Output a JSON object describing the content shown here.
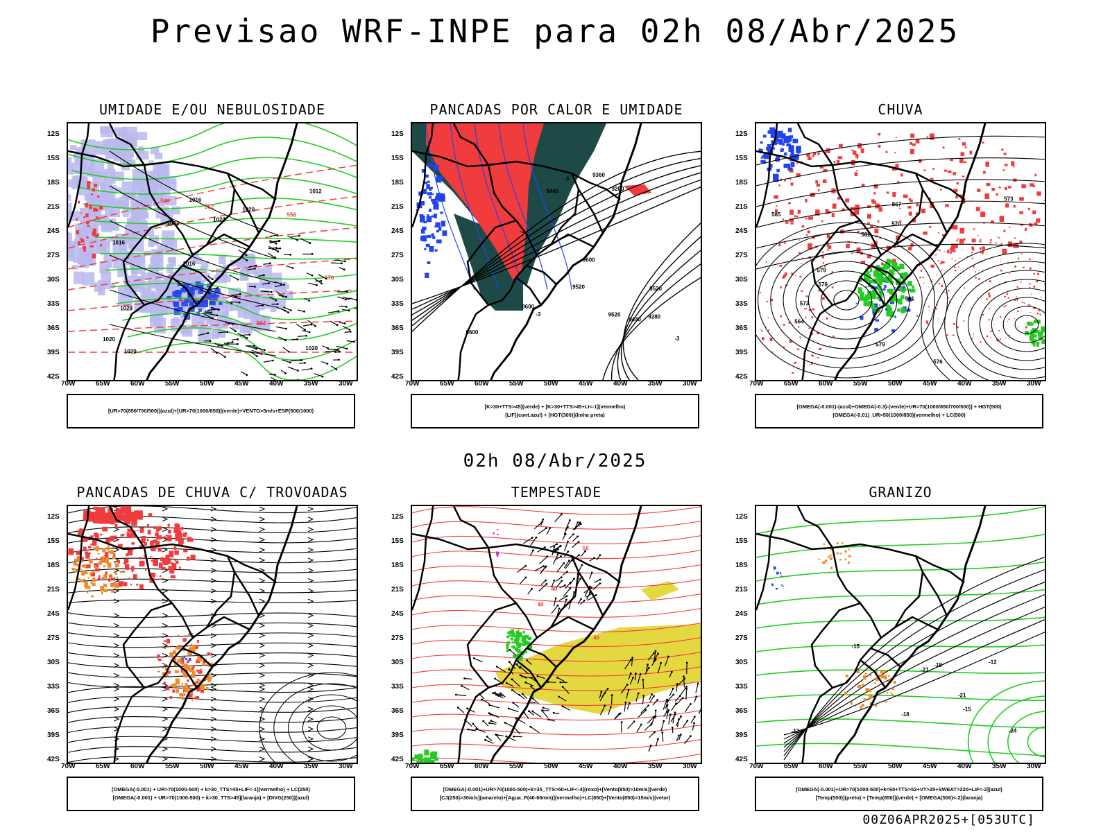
{
  "main_title": "Previsao WRF-INPE  para 02h 08/Abr/2025",
  "mid_title": "02h 08/Abr/2025",
  "footer": "00Z06APR2025+[053UTC]",
  "lat_labels": [
    "12S",
    "15S",
    "18S",
    "21S",
    "24S",
    "27S",
    "30S",
    "33S",
    "36S",
    "39S",
    "42S"
  ],
  "lon_labels": [
    "70W",
    "65W",
    "60W",
    "55W",
    "50W",
    "45W",
    "40W",
    "35W",
    "30W"
  ],
  "colors": {
    "red": "#f03c3c",
    "green": "#22cc22",
    "blue": "#2244ee",
    "lavender": "#b8b8ee",
    "darkgreen": "#1d4a46",
    "yellow": "#e4d840",
    "orange": "#f08c28",
    "purple": "#c030d0"
  },
  "panels": [
    {
      "id": "umidade",
      "title": "UMIDADE E/OU NEBULOSIDADE",
      "legend": [
        "[UR>70(850/700/500)](azul)+[UR>70(1000/850)](verde)+VENTO>5m/s+ESP(500/1000)"
      ],
      "contour_labels": [
        "1020",
        "1016",
        "1012",
        "1016",
        "1020",
        "1020",
        "1016",
        "1024",
        "1028",
        "1032",
        "1020",
        "570",
        "564",
        "558",
        "552",
        "546"
      ]
    },
    {
      "id": "pancadas-calor",
      "title": "PANCADAS POR CALOR E UMIDADE",
      "legend": [
        "[K>30+TTS>45](verde) + [K>30+TTS>45+LI<-1](vermelho)",
        "[LIF](cont.azul) + [HGT(300)](linha preta)"
      ],
      "contour_labels": [
        "9600",
        "9520",
        "9600",
        "9520",
        "9440",
        "9360",
        "9280",
        "9200",
        "9440",
        "9600",
        "-3",
        "-3",
        "-3",
        "-3",
        "9520"
      ]
    },
    {
      "id": "chuva",
      "title": "CHUVA",
      "legend": [
        "[OMEGA(-0.001)-(azul)+OMEGA(-0.3)-(verde)+UR>70(1000/850/700/500)] + HGT(500)",
        "[OMEGA(-0.01)_UR>50(1000/850)(vermelho) + LC(500)"
      ],
      "contour_labels": [
        "585",
        "582",
        "579",
        "576",
        "573",
        "570",
        "567",
        "564",
        "561",
        "579",
        "576",
        "573"
      ]
    },
    {
      "id": "pancadas-trovoadas",
      "title": "PANCADAS DE CHUVA C/ TROVOADAS",
      "legend": [
        "[OMEGA(-0.001) + UR>70(1000-500) + k>30_TTS>45+LIF<-1](vermelho) + LC(250)",
        "[OMEGA(-0.001) + UR>70(1000-500) + k>30_TTS>45](laranja) + [DIVG(250)](azul)"
      ],
      "contour_labels": []
    },
    {
      "id": "tempestade",
      "title": "TEMPESTADE",
      "legend": [
        "[OMEGA(-0.001)+UR>70(1000-500)+k>35_TTS>50+LIF<-4](roxo)+[Vento(850)>10m/s](verde)",
        "[CJ(250)>30m/s](amarelo)+[Agua_P(40-60mm)](vermelho)+LC(850)+[Vento(850)>15m/s](vetor)"
      ],
      "contour_labels": [
        "50",
        "40",
        "40",
        "40"
      ]
    },
    {
      "id": "granizo",
      "title": "GRANIZO",
      "legend": [
        "[OMEGA(-0.001)+UR>70(1000-500)+k<60+TTS>52+VT>25+SWEAT>220+LIF<-2](azul)",
        "[Temp(500)](preto) + [Temp(850)](verde) + [OMEGA(500)<-2](laranja)"
      ],
      "contour_labels": [
        "-12",
        "-15",
        "-18",
        "-21",
        "-24",
        "-12",
        "-15",
        "-18",
        "-21"
      ]
    }
  ]
}
